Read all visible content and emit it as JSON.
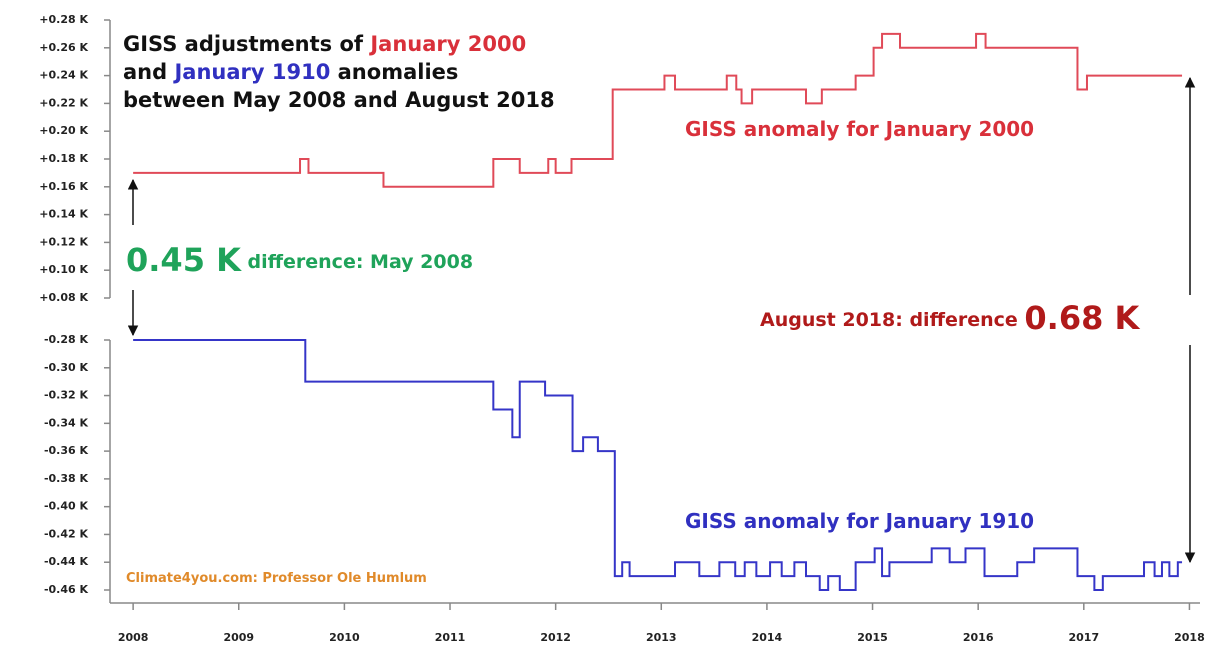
{
  "chart_data": [
    {
      "type": "step",
      "title": [
        [
          {
            "text": "GISS adjustments of ",
            "color": "#111111"
          },
          {
            "text": "January 2000",
            "color": "#d9303a"
          }
        ],
        [
          {
            "text": "and ",
            "color": "#111111"
          },
          {
            "text": "January 1910",
            "color": "#3030c0"
          },
          {
            "text": " anomalies",
            "color": "#111111"
          }
        ],
        [
          {
            "text": "between  May 2008 and August 2018",
            "color": "#111111"
          }
        ]
      ],
      "series": [
        {
          "name": "GISS anomaly for January 2000",
          "color": "#e04a58",
          "x": [
            2008,
            2009.58,
            2009.66,
            2010.37,
            2011.41,
            2011.66,
            2011.93,
            2012.0,
            2012.15,
            2012.54,
            2013.03,
            2013.13,
            2013.62,
            2013.71,
            2013.76,
            2013.86,
            2014.37,
            2014.52,
            2014.84,
            2015.01,
            2015.09,
            2015.26,
            2015.98,
            2016.07,
            2016.94,
            2017.03,
            2017.93
          ],
          "values": [
            0.17,
            0.18,
            0.17,
            0.16,
            0.18,
            0.17,
            0.18,
            0.17,
            0.18,
            0.23,
            0.24,
            0.23,
            0.24,
            0.23,
            0.22,
            0.23,
            0.22,
            0.23,
            0.24,
            0.26,
            0.27,
            0.26,
            0.27,
            0.26,
            0.23,
            0.24,
            0.24
          ]
        }
      ],
      "annotations": [
        [
          {
            "text": "GISS anomaly for January 2000",
            "color": "#d9303a"
          }
        ],
        [
          {
            "text": "0.45 K",
            "color": "#1fa35a"
          },
          {
            "text": " difference: May 2008",
            "color": "#1fa35a"
          }
        ],
        [
          {
            "text": "August 2018: difference ",
            "color": "#b01a1a"
          },
          {
            "text": "0.68 K",
            "color": "#b01a1a"
          }
        ]
      ],
      "xlim": [
        2007.8,
        2018.1
      ],
      "ylim": [
        0.08,
        0.28
      ],
      "yticks": [
        {
          "value": 0.08,
          "label": "+0.08 K"
        },
        {
          "value": 0.1,
          "label": "+0.10 K"
        },
        {
          "value": 0.12,
          "label": "+0.12 K"
        },
        {
          "value": 0.14,
          "label": "+0.14 K"
        },
        {
          "value": 0.16,
          "label": "+0.16 K"
        },
        {
          "value": 0.18,
          "label": "+0.18 K"
        },
        {
          "value": 0.2,
          "label": "+0.20 K"
        },
        {
          "value": 0.22,
          "label": "+0.22 K"
        },
        {
          "value": 0.24,
          "label": "+0.24 K"
        },
        {
          "value": 0.26,
          "label": "+0.26 K"
        },
        {
          "value": 0.28,
          "label": "+0.28 K"
        }
      ]
    },
    {
      "type": "step",
      "series": [
        {
          "name": "GISS anomaly for January 1910",
          "color": "#3535c8",
          "x": [
            2008,
            2009.63,
            2011.41,
            2011.59,
            2011.66,
            2011.9,
            2012.16,
            2012.26,
            2012.4,
            2012.56,
            2012.63,
            2012.7,
            2013.13,
            2013.36,
            2013.55,
            2013.7,
            2013.79,
            2013.9,
            2014.03,
            2014.14,
            2014.26,
            2014.37,
            2014.5,
            2014.58,
            2014.69,
            2014.84,
            2015.02,
            2015.09,
            2015.16,
            2015.56,
            2015.73,
            2015.88,
            2016.06,
            2016.37,
            2016.53,
            2016.94,
            2017.1,
            2017.18,
            2017.57,
            2017.67,
            2017.74,
            2017.81,
            2017.89,
            2017.93
          ],
          "values": [
            -0.28,
            -0.31,
            -0.33,
            -0.35,
            -0.31,
            -0.32,
            -0.36,
            -0.35,
            -0.36,
            -0.45,
            -0.44,
            -0.45,
            -0.44,
            -0.45,
            -0.44,
            -0.45,
            -0.44,
            -0.45,
            -0.44,
            -0.45,
            -0.44,
            -0.45,
            -0.46,
            -0.45,
            -0.46,
            -0.44,
            -0.43,
            -0.45,
            -0.44,
            -0.43,
            -0.44,
            -0.43,
            -0.45,
            -0.44,
            -0.43,
            -0.45,
            -0.46,
            -0.45,
            -0.44,
            -0.45,
            -0.44,
            -0.45,
            -0.44,
            -0.44
          ]
        }
      ],
      "annotations": [
        [
          {
            "text": "GISS anomaly for January 1910",
            "color": "#3030c0"
          }
        ],
        [
          {
            "text": "Climate4you.com: Professor Ole Humlum",
            "color": "#e08a2a"
          }
        ]
      ],
      "xlim": [
        2007.8,
        2018.1
      ],
      "xticks": [
        2008,
        2009,
        2010,
        2011,
        2012,
        2013,
        2014,
        2015,
        2016,
        2017,
        2018
      ],
      "ylim": [
        -0.46,
        -0.28
      ],
      "yticks": [
        {
          "value": -0.28,
          "label": "-0.28 K"
        },
        {
          "value": -0.3,
          "label": "-0.30 K"
        },
        {
          "value": -0.32,
          "label": "-0.32 K"
        },
        {
          "value": -0.34,
          "label": "-0.34 K"
        },
        {
          "value": -0.36,
          "label": "-0.36 K"
        },
        {
          "value": -0.38,
          "label": "-0.38 K"
        },
        {
          "value": -0.4,
          "label": "-0.40 K"
        },
        {
          "value": -0.42,
          "label": "-0.42 K"
        },
        {
          "value": -0.44,
          "label": "-0.44 K"
        },
        {
          "value": -0.46,
          "label": "-0.46 K"
        }
      ]
    }
  ]
}
